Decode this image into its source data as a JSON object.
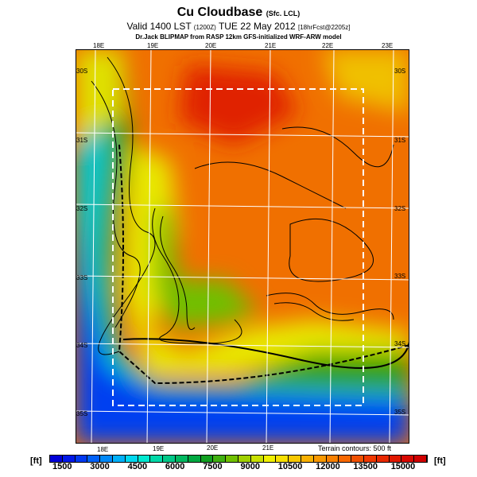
{
  "header": {
    "title": "Cu Cloudbase",
    "title_suffix": "(Sfc. LCL)",
    "valid": "Valid 1400 LST",
    "valid_zone": "(1200Z)",
    "valid_date": "TUE 22 May 2012",
    "forecast": "[18hrFcst@2205z]",
    "model": "Dr.Jack BLIPMAP from RASP 12km GFS-initialized WRF-ARW model"
  },
  "map": {
    "top_lon": [
      "18E",
      "19E",
      "20E",
      "21E",
      "22E",
      "23E"
    ],
    "bottom_lon": [
      "18E",
      "19E",
      "20E",
      "21E"
    ],
    "left_lat": [
      "30S",
      "31S",
      "32S",
      "33S",
      "34S",
      "35S"
    ],
    "right_lat": [
      "30S",
      "31S",
      "32S",
      "33S",
      "34S",
      "35S"
    ],
    "terrain_note": "Terrain contours: 500 ft"
  },
  "colorbar": {
    "unit": "[ft]",
    "labels": [
      "1500",
      "3000",
      "4500",
      "6000",
      "7500",
      "9000",
      "10500",
      "12000",
      "13500",
      "15000"
    ],
    "colors": [
      "#0000d8",
      "#0018e8",
      "#0038f0",
      "#0060f8",
      "#0088f8",
      "#00b0f8",
      "#00d8f0",
      "#00e8d0",
      "#00d8a8",
      "#00c888",
      "#00b860",
      "#00a840",
      "#10a020",
      "#40b010",
      "#70c000",
      "#a0d000",
      "#c8e000",
      "#f0f000",
      "#f8e000",
      "#f8c800",
      "#f8b000",
      "#f89800",
      "#f88000",
      "#f86800",
      "#f05000",
      "#f03800",
      "#e82800",
      "#e01800",
      "#d80800",
      "#d00000"
    ]
  }
}
